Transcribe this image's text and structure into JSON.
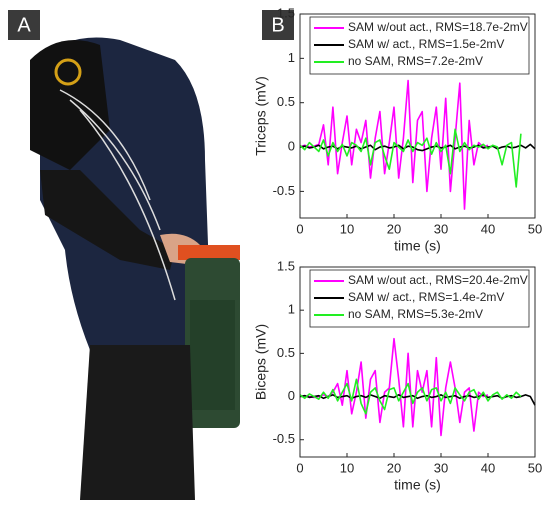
{
  "panels": {
    "a": "A",
    "b": "B"
  },
  "chart_data": [
    {
      "type": "line",
      "xlabel": "time (s)",
      "ylabel": "Triceps (mV)",
      "xlim": [
        0,
        50
      ],
      "ylim": [
        -0.8,
        1.5
      ],
      "xticks": [
        0,
        10,
        20,
        30,
        40,
        50
      ],
      "yticks": [
        -0.5,
        0,
        0.5,
        1,
        1.5
      ],
      "legend": "top",
      "x": [
        0,
        1,
        2,
        3,
        4,
        5,
        6,
        7,
        8,
        9,
        10,
        11,
        12,
        13,
        14,
        15,
        16,
        17,
        18,
        19,
        20,
        21,
        22,
        23,
        24,
        25,
        26,
        27,
        28,
        29,
        30,
        31,
        32,
        33,
        34,
        35,
        36,
        37,
        38,
        39,
        40,
        41,
        42,
        43,
        44,
        45,
        46,
        47,
        48,
        49,
        50
      ],
      "series": [
        {
          "name": "SAM w/out act., RMS=18.7e-2mV",
          "color": "#ff00ff",
          "values": [
            0,
            0.02,
            0,
            0.01,
            0.03,
            0.25,
            -0.2,
            0.45,
            -0.3,
            0.05,
            0.35,
            -0.2,
            0.2,
            0.05,
            0.3,
            -0.35,
            0.1,
            0.4,
            -0.3,
            0.05,
            0.45,
            -0.35,
            0.1,
            0.75,
            -0.4,
            0.3,
            0.4,
            -0.5,
            0.1,
            0.45,
            -0.25,
            0.55,
            -0.5,
            0.1,
            0.72,
            -0.7,
            0.3,
            -0.2,
            0.05,
            0,
            0.02,
            null,
            null,
            null,
            null,
            null,
            null,
            null,
            null,
            null,
            null
          ]
        },
        {
          "name": "SAM w/ act., RMS=1.5e-2mV",
          "color": "#000000",
          "values": [
            0,
            0.01,
            -0.01,
            0,
            0.02,
            -0.02,
            0,
            0.01,
            -0.02,
            0.01,
            0,
            -0.01,
            0.01,
            -0.02,
            0,
            0.02,
            -0.03,
            0,
            0.01,
            -0.01,
            0,
            0.02,
            -0.02,
            0.01,
            0,
            -0.03,
            -0.04,
            -0.02,
            0,
            0.01,
            -0.01,
            0,
            0.02,
            -0.02,
            0,
            0.01,
            -0.01,
            0,
            0.02,
            -0.01,
            0,
            0.01,
            -0.02,
            0,
            0.01,
            -0.01,
            0,
            0.02,
            -0.01,
            0.03,
            -0.02
          ]
        },
        {
          "name": "no SAM, RMS=7.2e-2mV",
          "color": "#22ee22",
          "values": [
            0.02,
            -0.03,
            0.05,
            0,
            -0.05,
            0.08,
            -0.1,
            0.05,
            -0.05,
            0.03,
            -0.1,
            0.05,
            0.02,
            -0.05,
            0.1,
            -0.2,
            0.05,
            0.08,
            -0.1,
            -0.25,
            0.05,
            0,
            -0.05,
            0.08,
            -0.05,
            0.05,
            0.02,
            0.1,
            -0.08,
            0.05,
            -0.05,
            0.02,
            -0.3,
            0.2,
            -0.05,
            0.05,
            -0.03,
            0.02,
            0,
            0.03,
            -0.02,
            0.02,
            0,
            -0.2,
            0.02,
            0.05,
            -0.45,
            0.15,
            null,
            null,
            null
          ]
        }
      ]
    },
    {
      "type": "line",
      "xlabel": "time (s)",
      "ylabel": "Biceps (mV)",
      "xlim": [
        0,
        50
      ],
      "ylim": [
        -0.7,
        1.5
      ],
      "xticks": [
        0,
        10,
        20,
        30,
        40,
        50
      ],
      "yticks": [
        -0.5,
        0,
        0.5,
        1,
        1.5
      ],
      "legend": "top",
      "x": [
        0,
        1,
        2,
        3,
        4,
        5,
        6,
        7,
        8,
        9,
        10,
        11,
        12,
        13,
        14,
        15,
        16,
        17,
        18,
        19,
        20,
        21,
        22,
        23,
        24,
        25,
        26,
        27,
        28,
        29,
        30,
        31,
        32,
        33,
        34,
        35,
        36,
        37,
        38,
        39,
        40,
        41,
        42,
        43,
        44,
        45,
        46,
        47,
        48,
        49,
        50
      ],
      "series": [
        {
          "name": "SAM w/out act., RMS=20.4e-2mV",
          "color": "#ff00ff",
          "values": [
            0,
            0.01,
            0,
            -0.01,
            0,
            0.02,
            0,
            0.05,
            0.15,
            -0.1,
            0.3,
            -0.2,
            0.05,
            0.4,
            -0.25,
            0.2,
            0.3,
            -0.3,
            0.05,
            0.1,
            0.67,
            0.2,
            -0.35,
            0.5,
            -0.35,
            0.3,
            0.05,
            0.3,
            -0.35,
            0.45,
            -0.45,
            0.1,
            0.4,
            0.1,
            -0.3,
            0.05,
            0.1,
            -0.4,
            0.05,
            0,
            0.02,
            null,
            null,
            null,
            null,
            null,
            null,
            null,
            null,
            null,
            null
          ]
        },
        {
          "name": "SAM w/ act., RMS=1.4e-2mV",
          "color": "#000000",
          "values": [
            0,
            0.01,
            -0.01,
            0,
            0.01,
            -0.02,
            0,
            0.02,
            -0.01,
            0,
            0.01,
            -0.02,
            0,
            0.01,
            -0.01,
            0.02,
            0,
            -0.02,
            0.01,
            0,
            -0.01,
            0.02,
            -0.01,
            0,
            0.01,
            -0.02,
            0,
            0.01,
            -0.01,
            0,
            0.02,
            -0.01,
            0,
            0.01,
            -0.02,
            0,
            0.01,
            -0.01,
            0,
            0.02,
            -0.01,
            0,
            0.01,
            -0.02,
            0,
            0.01,
            -0.01,
            0,
            0.02,
            0,
            -0.1
          ]
        },
        {
          "name": "no SAM, RMS=5.3e-2mV",
          "color": "#22ee22",
          "values": [
            0.02,
            -0.02,
            0.03,
            0,
            -0.03,
            0.05,
            -0.02,
            0.08,
            -0.05,
            0.05,
            0.15,
            -0.05,
            0.2,
            -0.08,
            -0.2,
            0.05,
            0.1,
            -0.05,
            -0.15,
            0.08,
            0.1,
            -0.05,
            0.05,
            0.15,
            -0.08,
            0.05,
            0.1,
            -0.05,
            0.08,
            0.1,
            -0.05,
            0.05,
            -0.08,
            0.1,
            0.02,
            -0.05,
            0.05,
            0.08,
            -0.03,
            0.05,
            -0.05,
            0.02,
            0.05,
            -0.03,
            0.02,
            -0.02,
            0.05,
            0,
            null,
            null,
            null
          ]
        }
      ]
    }
  ]
}
